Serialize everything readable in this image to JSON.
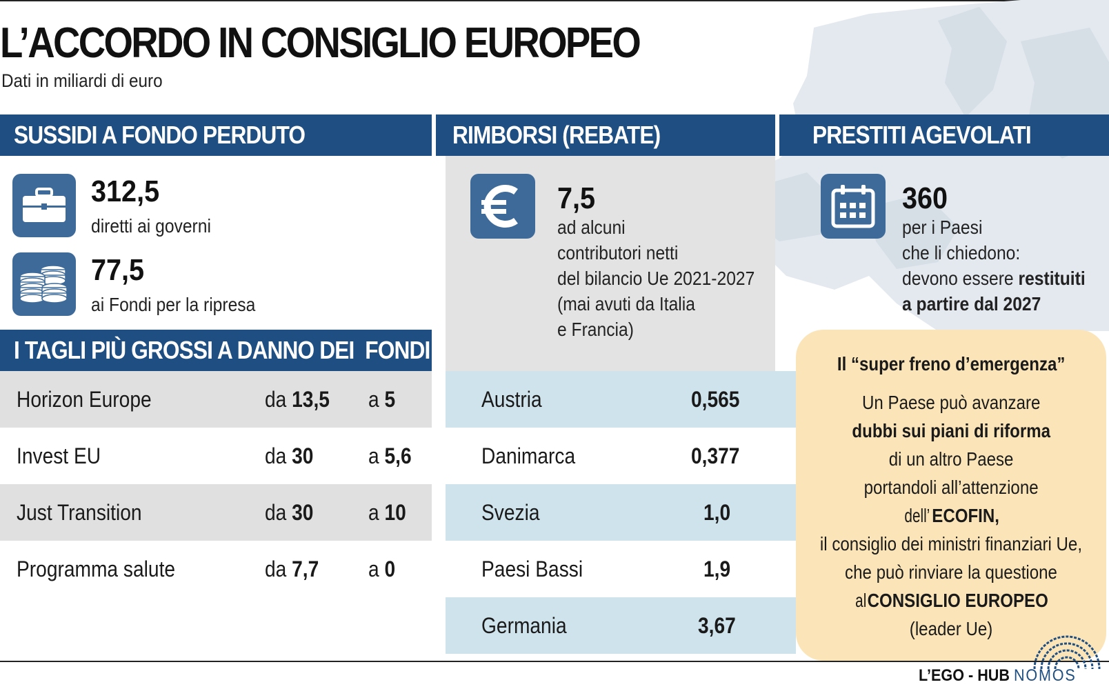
{
  "title": "L’ACCORDO IN CONSIGLIO EUROPEO",
  "subtitle": "Dati in miliardi di euro",
  "colors": {
    "header_blue": "#1f4f82",
    "icon_blue": "#3d6a99",
    "row_grey": "#e0e0e0",
    "row_light_blue": "#cfe3ec",
    "callout_bg": "#fbe5b8"
  },
  "sussidi": {
    "header": "SUSSIDI A FONDO PERDUTO",
    "item1": {
      "icon": "briefcase-icon",
      "value": "312,5",
      "desc": "diretti ai governi"
    },
    "item2": {
      "icon": "coins-icon",
      "value": "77,5",
      "desc": "ai Fondi per la ripresa"
    }
  },
  "rimborsi": {
    "header": "RIMBORSI (REBATE)",
    "icon": "euro-icon",
    "value": "7,5",
    "desc_lines": [
      "ad alcuni",
      "contributori netti",
      "del bilancio Ue 2021-2027",
      "(mai avuti da Italia",
      "e Francia)"
    ]
  },
  "prestiti": {
    "header": "PRESTITI AGEVOLATI",
    "icon": "calendar-icon",
    "value": "360",
    "line1": "per i Paesi",
    "line2": "che li chiedono:",
    "line3_pre": "devono essere ",
    "line3_bold": "restituiti",
    "line4_bold": "a partire dal 2027"
  },
  "tagli": {
    "header": "I TAGLI PIÙ GROSSI A DANNO DEI  FONDI",
    "prefix_from": "da ",
    "prefix_to": "a ",
    "rows": [
      {
        "name": "Horizon Europe",
        "from": "13,5",
        "to": "5"
      },
      {
        "name": "Invest EU",
        "from": "30",
        "to": "5,6"
      },
      {
        "name": "Just Transition",
        "from": "30",
        "to": "10"
      },
      {
        "name": "Programma salute",
        "from": "7,7",
        "to": "0"
      }
    ]
  },
  "rebate_rows": [
    {
      "country": "Austria",
      "value": "0,565"
    },
    {
      "country": "Danimarca",
      "value": "0,377"
    },
    {
      "country": "Svezia",
      "value": "1,0"
    },
    {
      "country": "Paesi Bassi",
      "value": "1,9"
    },
    {
      "country": "Germania",
      "value": "3,67"
    }
  ],
  "callout": {
    "title": "Il “super freno d’emergenza”",
    "l1": "Un Paese può avanzare",
    "l2_bold": "dubbi sui piani di riforma",
    "l3": "di un altro Paese",
    "l4": "portandoli all’attenzione",
    "l5_pre": "dell’",
    "l5_bold": "ECOFIN,",
    "l6": "il consiglio dei ministri finanziari Ue,",
    "l7": "che può rinviare la questione",
    "l8_pre": "al ",
    "l8_bold": "CONSIGLIO EUROPEO",
    "l9": "(leader Ue)"
  },
  "logo": {
    "text": "L’EGO - HUB",
    "brand": "NOMOS"
  }
}
